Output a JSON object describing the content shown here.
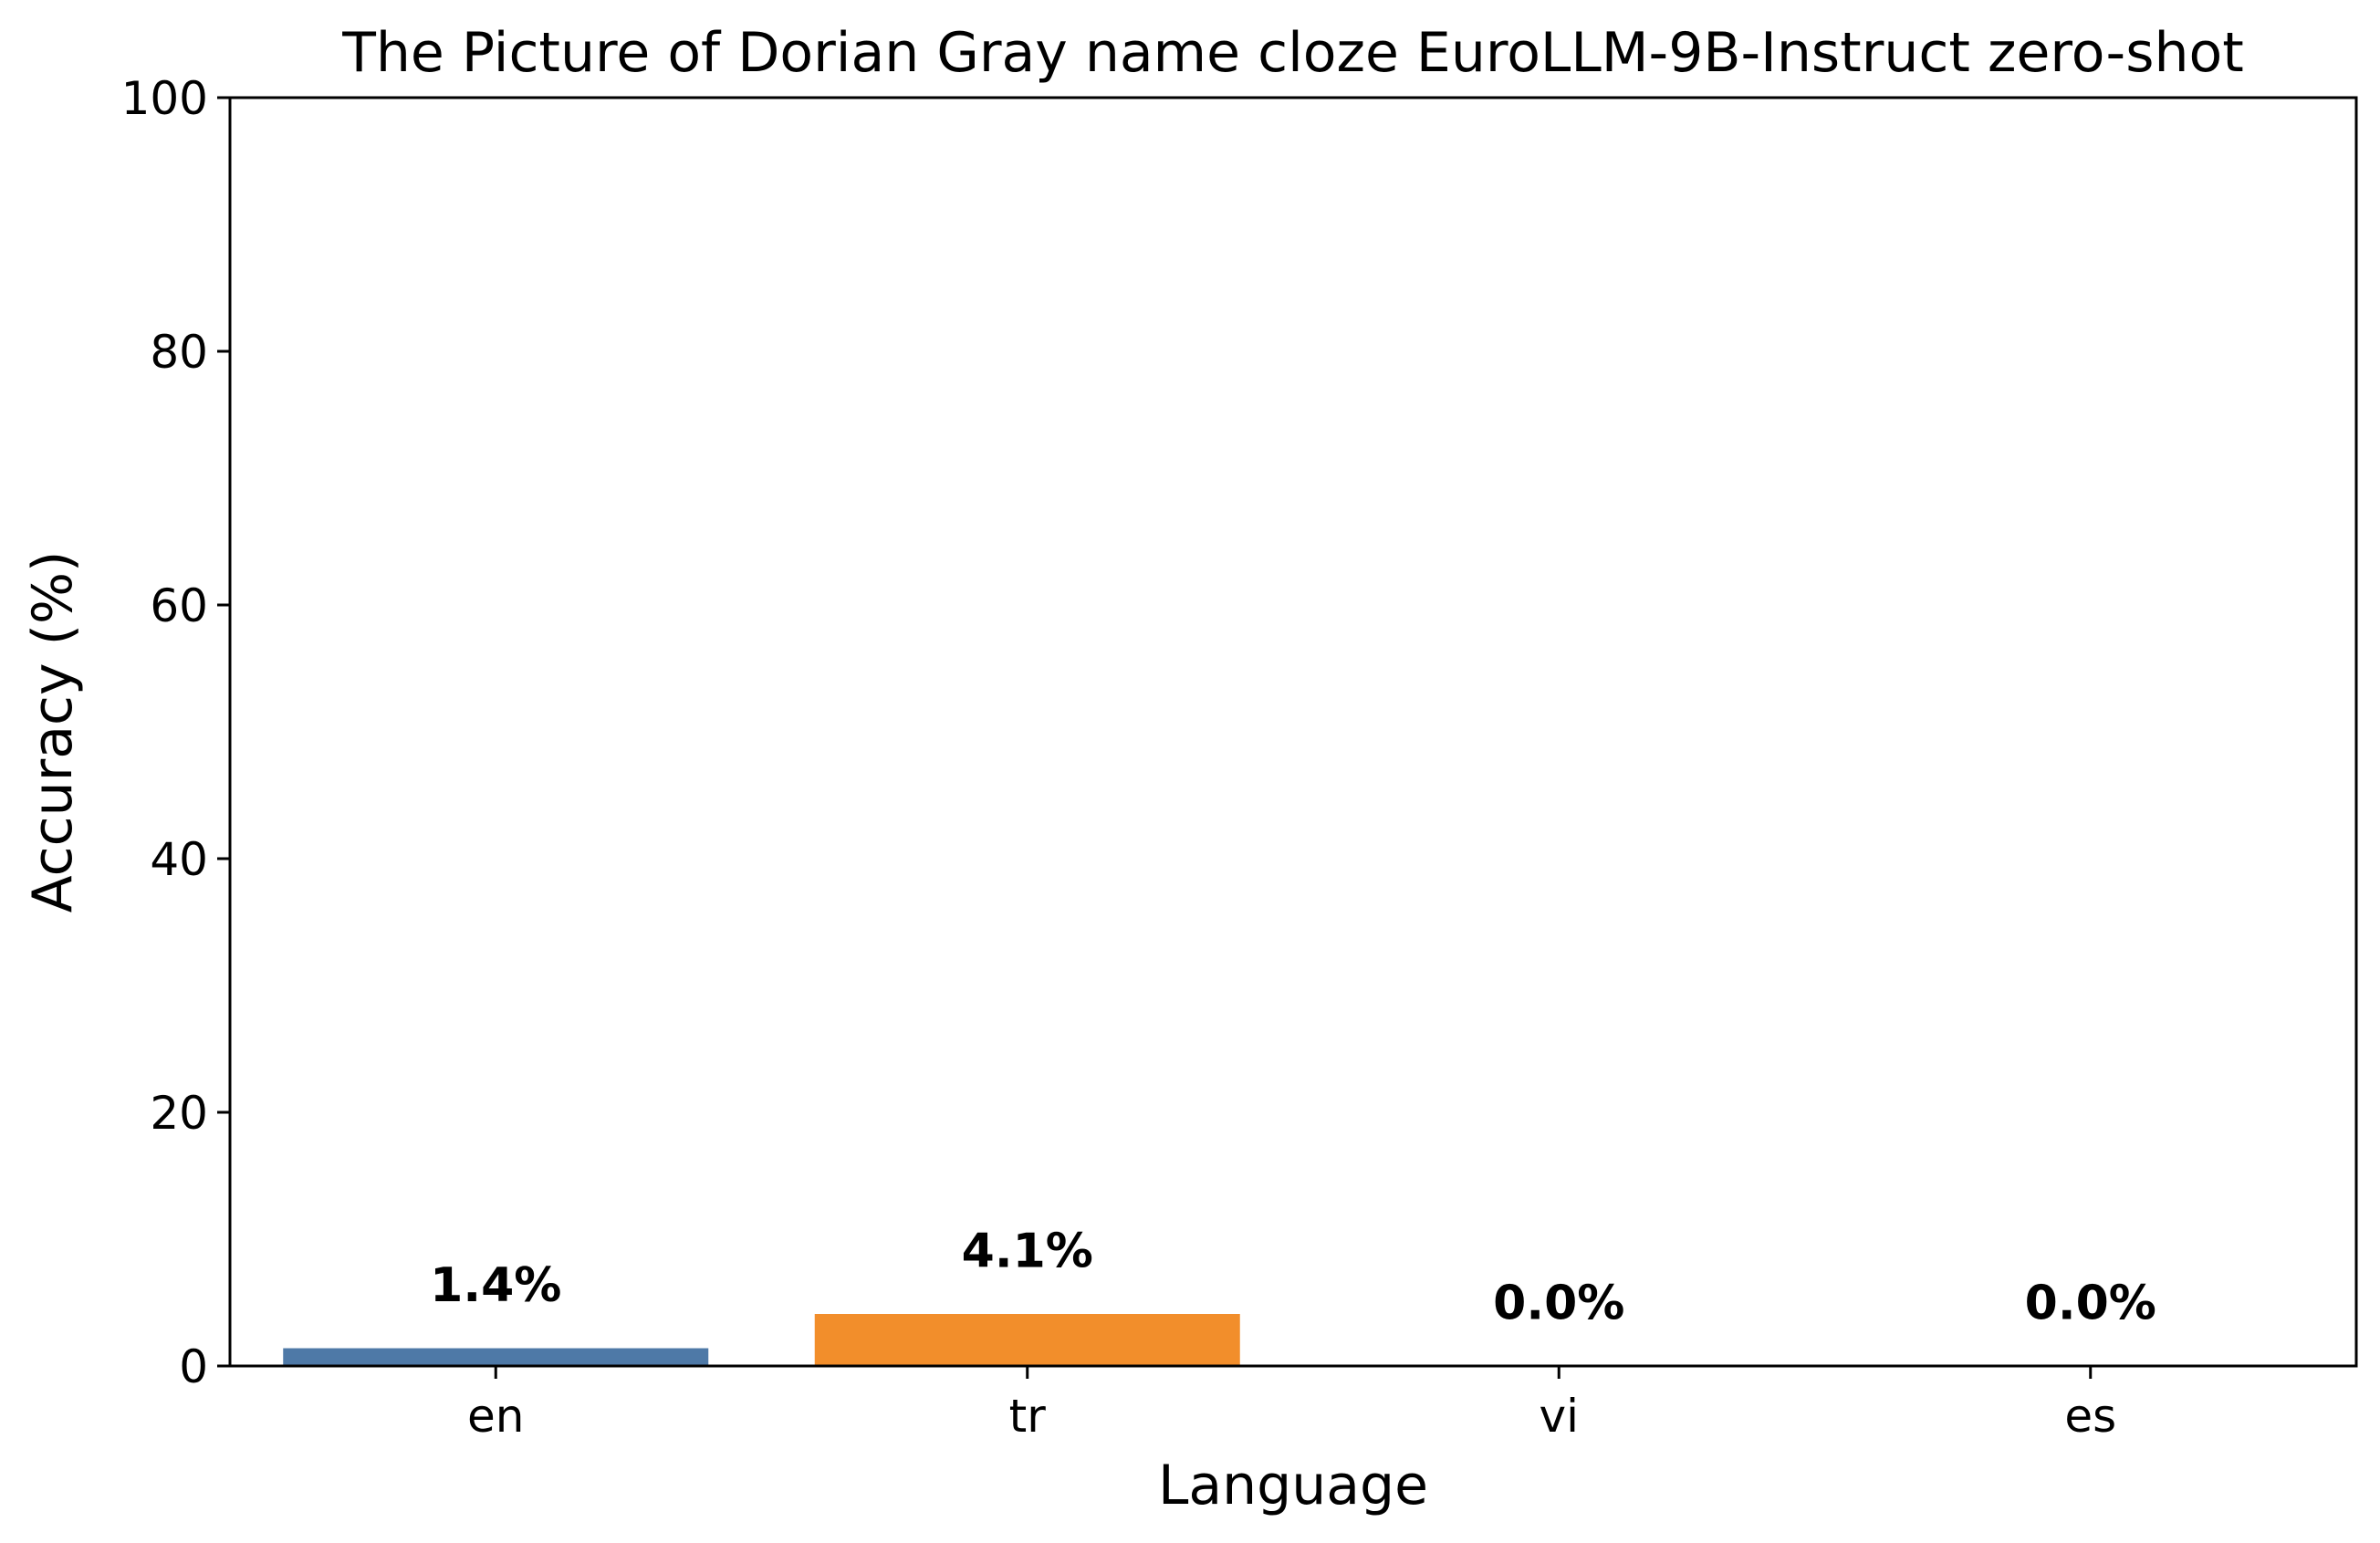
{
  "chart_data": {
    "type": "bar",
    "title": "The Picture of Dorian Gray name cloze EuroLLM-9B-Instruct zero-shot",
    "xlabel": "Language",
    "ylabel": "Accuracy (%)",
    "categories": [
      "en",
      "tr",
      "vi",
      "es"
    ],
    "values": [
      1.4,
      4.1,
      0.0,
      0.0
    ],
    "value_labels": [
      "1.4%",
      "4.1%",
      "0.0%",
      "0.0%"
    ],
    "colors": [
      "#4e79a7",
      "#f28e2b",
      "#e15759",
      "#76b7b2"
    ],
    "ylim": [
      0,
      100
    ],
    "yticks": [
      0,
      20,
      40,
      60,
      80,
      100
    ],
    "ytick_labels": [
      "0",
      "20",
      "40",
      "60",
      "80",
      "100"
    ],
    "grid": false,
    "legend": "none"
  }
}
